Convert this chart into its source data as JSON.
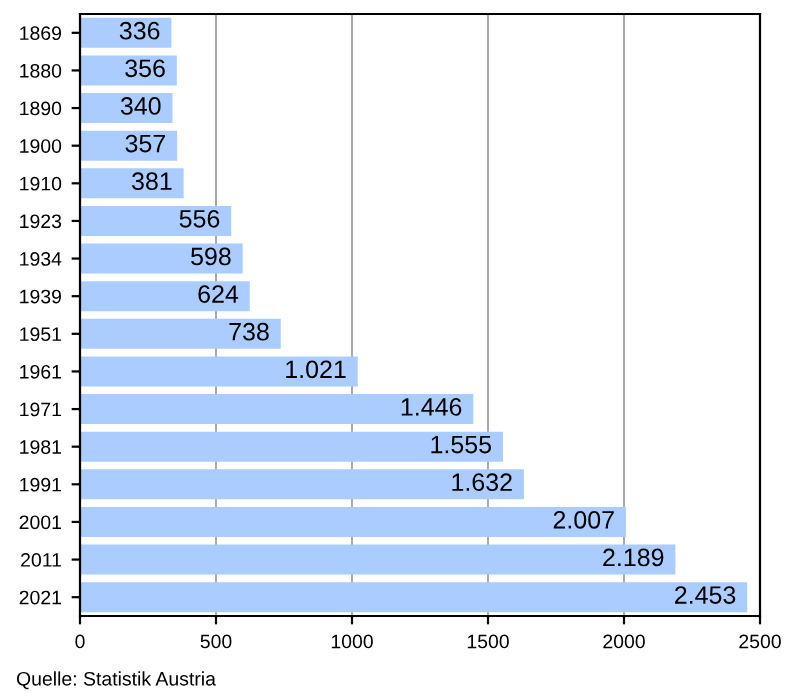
{
  "chart_data": {
    "type": "bar",
    "orientation": "horizontal",
    "categories": [
      "1869",
      "1880",
      "1890",
      "1900",
      "1910",
      "1923",
      "1934",
      "1939",
      "1951",
      "1961",
      "1971",
      "1981",
      "1991",
      "2001",
      "2011",
      "2021"
    ],
    "values": [
      336,
      356,
      340,
      357,
      381,
      556,
      598,
      624,
      738,
      1021,
      1446,
      1555,
      1632,
      2007,
      2189,
      2453
    ],
    "value_labels": [
      "336",
      "356",
      "340",
      "357",
      "381",
      "556",
      "598",
      "624",
      "738",
      "1.021",
      "1.446",
      "1.555",
      "1.632",
      "2.007",
      "2.189",
      "2.453"
    ],
    "color": "#aaccff",
    "xlim": [
      0,
      2500
    ],
    "xticks": [
      0,
      500,
      1000,
      1500,
      2000,
      2500
    ],
    "grid": "x",
    "annotations": [
      "Quelle: Statistik Austria"
    ]
  }
}
